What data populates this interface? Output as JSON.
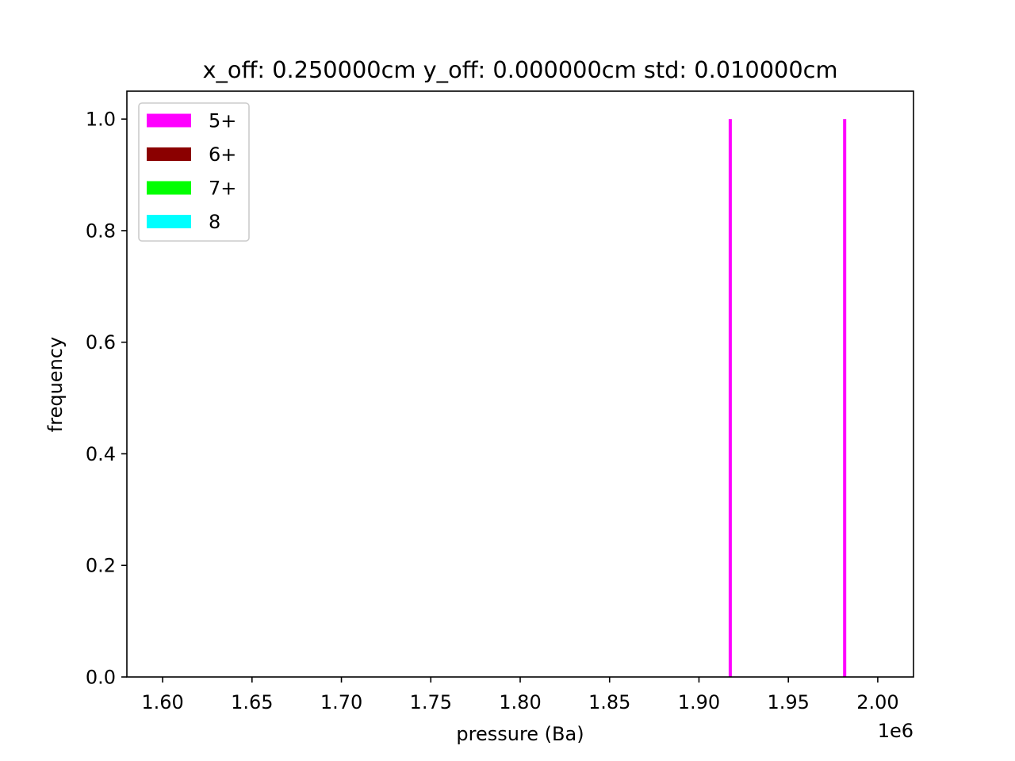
{
  "chart_data": {
    "type": "bar",
    "title": "x_off: 0.250000cm y_off: 0.000000cm std: 0.010000cm",
    "xlabel": "pressure (Ba)",
    "ylabel": "frequency",
    "x_offset_text": "1e6",
    "xlim": [
      1.58,
      2.02
    ],
    "ylim": [
      0.0,
      1.05
    ],
    "x_scale_factor": 1000000,
    "xticks": [
      1.6,
      1.65,
      1.7,
      1.75,
      1.8,
      1.85,
      1.9,
      1.95,
      2.0
    ],
    "xtick_labels": [
      "1.60",
      "1.65",
      "1.70",
      "1.75",
      "1.80",
      "1.85",
      "1.90",
      "1.95",
      "2.00"
    ],
    "yticks": [
      0.0,
      0.2,
      0.4,
      0.6,
      0.8,
      1.0
    ],
    "ytick_labels": [
      "0.0",
      "0.2",
      "0.4",
      "0.6",
      "0.8",
      "1.0"
    ],
    "grid": false,
    "legend_position": "upper-left",
    "series": [
      {
        "name": "5+",
        "color": "#ff00ff",
        "bars": [
          {
            "x": 1.9175,
            "value": 1.0
          },
          {
            "x": 1.9815,
            "value": 1.0
          }
        ]
      },
      {
        "name": "6+",
        "color": "#8b0000",
        "bars": []
      },
      {
        "name": "7+",
        "color": "#00ff00",
        "bars": []
      },
      {
        "name": "8",
        "color": "#00ffff",
        "bars": []
      }
    ]
  }
}
